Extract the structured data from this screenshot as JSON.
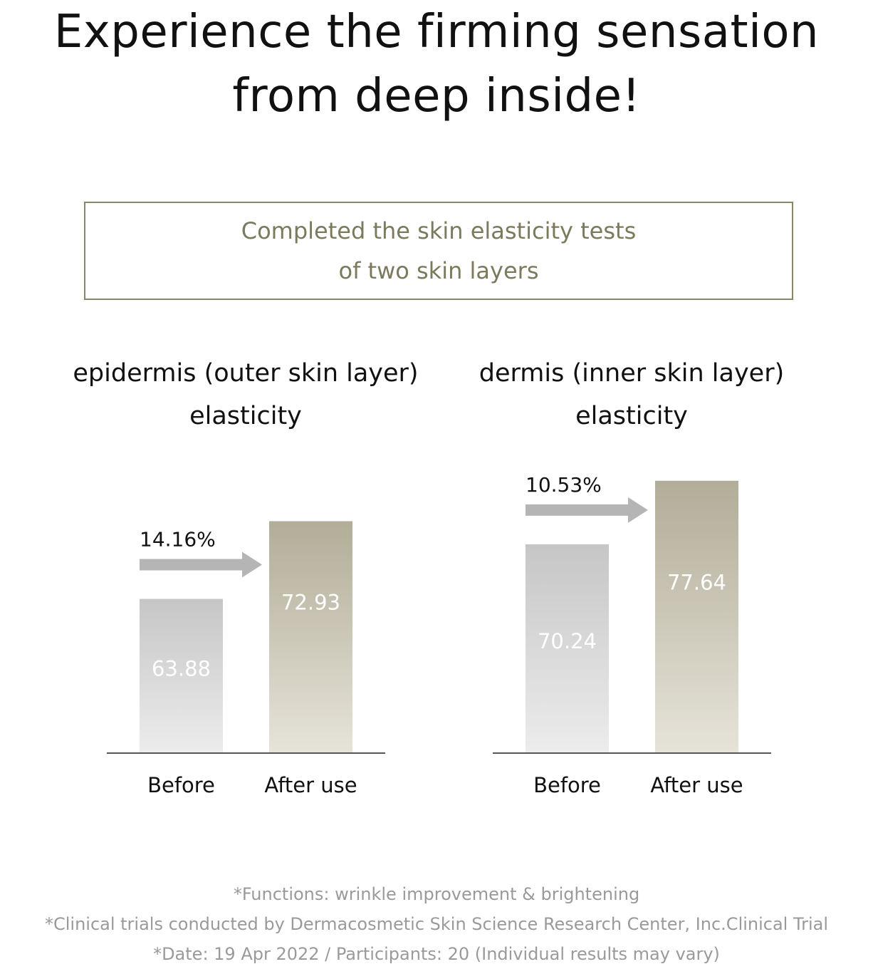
{
  "headline": {
    "line1": "Experience the firming sensation",
    "line2": "from deep inside!"
  },
  "info_box": {
    "line1": "Completed the skin elasticity tests",
    "line2": "of two skin layers"
  },
  "colors": {
    "before_bar": "#c9c9c9",
    "after_bar": "#b2ad98",
    "arrow": "#b5b5b5",
    "box_border": "#8a8567",
    "box_text": "#7c7a5c",
    "footnote": "#9a9a9a"
  },
  "chart_data": [
    {
      "type": "bar",
      "title_line1": "epidermis (outer skin layer)",
      "title_line2": "elasticity",
      "categories": [
        "Before",
        "After use"
      ],
      "values": [
        63.88,
        72.93
      ],
      "value_labels": [
        "63.88",
        "72.93"
      ],
      "change_label": "14.16%"
    },
    {
      "type": "bar",
      "title_line1": "dermis (inner skin layer)",
      "title_line2": "elasticity",
      "categories": [
        "Before",
        "After use"
      ],
      "values": [
        70.24,
        77.64
      ],
      "value_labels": [
        "70.24",
        "77.64"
      ],
      "change_label": "10.53%"
    }
  ],
  "footnotes": [
    "*Functions: wrinkle improvement & brightening",
    "*Clinical trials conducted by Dermacosmetic Skin Science Research Center, Inc.Clinical Trial",
    "*Date: 19 Apr 2022 / Participants: 20 (Individual results may vary)"
  ]
}
